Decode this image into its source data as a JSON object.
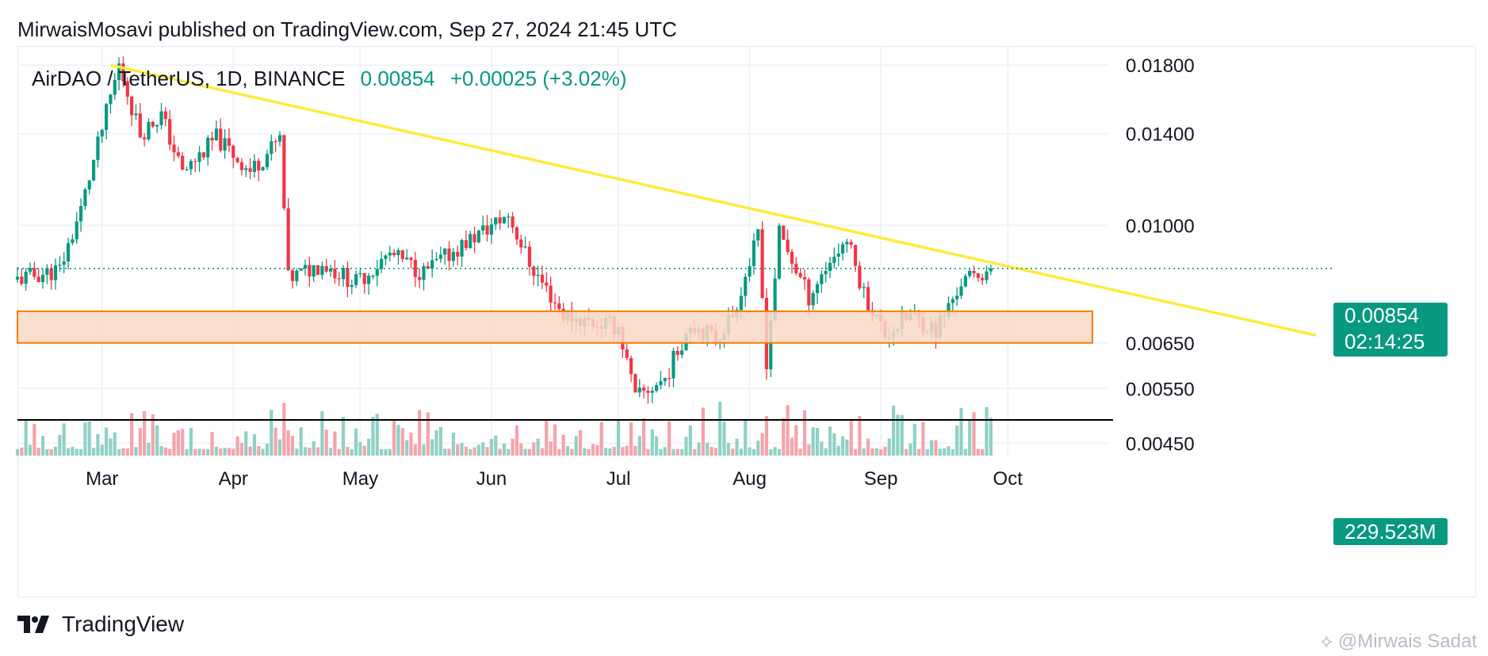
{
  "header": {
    "published_line": "MirwaisMosavi published on TradingView.com, Sep 27, 2024 21:45 UTC"
  },
  "symbol": {
    "name": "AirDAO / TetherUS, 1D, BINANCE",
    "last": "0.00854",
    "change": "+0.00025 (+3.02%)"
  },
  "price_tag": {
    "price": "0.00854",
    "countdown": "02:14:25"
  },
  "volume_tag": {
    "value": "229.523M"
  },
  "footer": {
    "brand": "TradingView",
    "watermark": "@Mirwais Sadat"
  },
  "colors": {
    "up": "#089981",
    "down": "#F23645",
    "up_volume": "#8FD1C6",
    "down_volume": "#F5A3AA",
    "trendline": "#FFEB3B",
    "zone_fill": "#F9D8C6",
    "zone_border": "#F57C00",
    "support": "#000000",
    "grid": "#F0F3FA"
  },
  "chart_data": {
    "type": "candlestick",
    "title": "AirDAO / TetherUS, 1D, BINANCE",
    "x_tick_labels": [
      "Mar",
      "Apr",
      "May",
      "Jun",
      "Jul",
      "Aug",
      "Sep",
      "Oct"
    ],
    "y_tick_labels": [
      "0.01800",
      "0.01400",
      "0.01000",
      "0.00650",
      "0.00550",
      "0.00450"
    ],
    "y_scale": "log",
    "ylim": [
      0.0043,
      0.0192
    ],
    "grid": true,
    "last_price": 0.00854,
    "series": [
      {
        "date": "2024-02-10",
        "close": 0.0082
      },
      {
        "date": "2024-02-20",
        "close": 0.0085
      },
      {
        "date": "2024-02-25",
        "close": 0.0106
      },
      {
        "date": "2024-03-05",
        "close": 0.018
      },
      {
        "date": "2024-03-10",
        "close": 0.014
      },
      {
        "date": "2024-03-15",
        "close": 0.015
      },
      {
        "date": "2024-03-20",
        "close": 0.0121
      },
      {
        "date": "2024-03-28",
        "close": 0.0138
      },
      {
        "date": "2024-04-05",
        "close": 0.0122
      },
      {
        "date": "2024-04-12",
        "close": 0.0137
      },
      {
        "date": "2024-04-14",
        "close": 0.0082
      },
      {
        "date": "2024-04-22",
        "close": 0.0087
      },
      {
        "date": "2024-04-30",
        "close": 0.0081
      },
      {
        "date": "2024-05-08",
        "close": 0.009
      },
      {
        "date": "2024-05-16",
        "close": 0.0084
      },
      {
        "date": "2024-05-25",
        "close": 0.0093
      },
      {
        "date": "2024-06-05",
        "close": 0.0104
      },
      {
        "date": "2024-06-10",
        "close": 0.0087
      },
      {
        "date": "2024-06-18",
        "close": 0.0072
      },
      {
        "date": "2024-06-25",
        "close": 0.007
      },
      {
        "date": "2024-07-01",
        "close": 0.0069
      },
      {
        "date": "2024-07-05",
        "close": 0.0053
      },
      {
        "date": "2024-07-12",
        "close": 0.0057
      },
      {
        "date": "2024-07-18",
        "close": 0.007
      },
      {
        "date": "2024-07-24",
        "close": 0.0066
      },
      {
        "date": "2024-07-28",
        "close": 0.0072
      },
      {
        "date": "2024-08-03",
        "close": 0.0096
      },
      {
        "date": "2024-08-05",
        "close": 0.0061
      },
      {
        "date": "2024-08-08",
        "close": 0.0097
      },
      {
        "date": "2024-08-15",
        "close": 0.0077
      },
      {
        "date": "2024-08-20",
        "close": 0.0088
      },
      {
        "date": "2024-08-24",
        "close": 0.0095
      },
      {
        "date": "2024-08-28",
        "close": 0.0078
      },
      {
        "date": "2024-09-02",
        "close": 0.0067
      },
      {
        "date": "2024-09-08",
        "close": 0.0072
      },
      {
        "date": "2024-09-14",
        "close": 0.0068
      },
      {
        "date": "2024-09-20",
        "close": 0.0081
      },
      {
        "date": "2024-09-27",
        "close": 0.00854
      }
    ],
    "trendline": {
      "from": {
        "date": "2024-03-03",
        "price": 0.018
      },
      "to": {
        "date": "2024-10-15",
        "price": 0.0082
      }
    },
    "zone": {
      "from_date": "2024-02-10",
      "to_date": "2024-10-21",
      "low": 0.0065,
      "high": 0.0073
    },
    "support_level": 0.0049,
    "volume_last": "229.523M"
  }
}
